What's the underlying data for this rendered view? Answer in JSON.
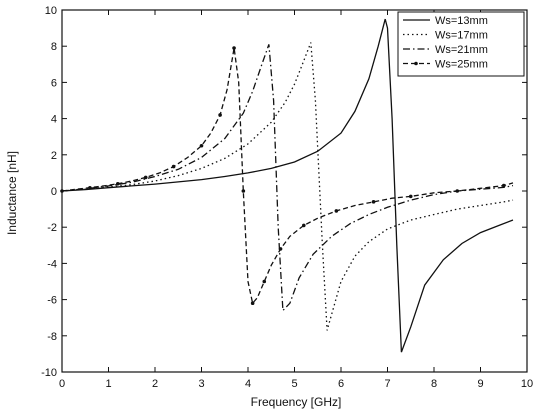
{
  "chart_data": {
    "type": "line",
    "xlabel": "Frequency  [GHz]",
    "ylabel": "Inductance  [nH]",
    "xlim": [
      0,
      10
    ],
    "ylim": [
      -10,
      10
    ],
    "xticks": [
      0,
      1,
      2,
      3,
      4,
      5,
      6,
      7,
      8,
      9,
      10
    ],
    "yticks": [
      -10,
      -8,
      -6,
      -4,
      -2,
      0,
      2,
      4,
      6,
      8,
      10
    ],
    "grid": false,
    "legend_position": "top-right",
    "series": [
      {
        "name": "Ws=13mm",
        "style": "solid",
        "x": [
          0,
          0.5,
          1.0,
          1.5,
          2.0,
          2.5,
          3.0,
          3.5,
          4.0,
          4.5,
          5.0,
          5.5,
          6.0,
          6.3,
          6.6,
          6.8,
          6.95,
          7.0,
          7.1,
          7.2,
          7.3,
          7.5,
          7.8,
          8.2,
          8.6,
          9.0,
          9.4,
          9.7
        ],
        "y": [
          0.0,
          0.08,
          0.18,
          0.28,
          0.38,
          0.5,
          0.63,
          0.8,
          1.0,
          1.25,
          1.6,
          2.2,
          3.2,
          4.4,
          6.2,
          8.0,
          9.5,
          9.0,
          4.0,
          -3.0,
          -8.9,
          -7.5,
          -5.2,
          -3.8,
          -2.9,
          -2.3,
          -1.9,
          -1.6
        ]
      },
      {
        "name": "Ws=17mm",
        "style": "dotted",
        "x": [
          0,
          0.5,
          1.0,
          1.5,
          2.0,
          2.5,
          3.0,
          3.5,
          4.0,
          4.5,
          4.8,
          5.0,
          5.2,
          5.35,
          5.45,
          5.6,
          5.7,
          5.8,
          6.0,
          6.3,
          6.6,
          7.0,
          7.5,
          8.0,
          8.5,
          9.0,
          9.5,
          9.7
        ],
        "y": [
          0.0,
          0.1,
          0.22,
          0.35,
          0.55,
          0.85,
          1.25,
          1.8,
          2.6,
          3.8,
          4.9,
          5.9,
          7.2,
          8.2,
          5.0,
          -3.0,
          -7.7,
          -6.8,
          -5.0,
          -3.6,
          -2.8,
          -2.1,
          -1.6,
          -1.3,
          -1.0,
          -0.8,
          -0.6,
          -0.5
        ]
      },
      {
        "name": "Ws=21mm",
        "style": "dashdot",
        "x": [
          0,
          0.5,
          1.0,
          1.5,
          2.0,
          2.5,
          3.0,
          3.5,
          3.9,
          4.1,
          4.3,
          4.45,
          4.55,
          4.65,
          4.75,
          4.9,
          5.1,
          5.4,
          5.8,
          6.2,
          6.6,
          7.0,
          7.5,
          8.0,
          8.5,
          9.0,
          9.5,
          9.7
        ],
        "y": [
          0.0,
          0.12,
          0.28,
          0.48,
          0.8,
          1.2,
          1.85,
          2.9,
          4.3,
          5.5,
          7.0,
          8.1,
          5.0,
          -2.0,
          -6.6,
          -6.2,
          -4.8,
          -3.5,
          -2.5,
          -1.8,
          -1.3,
          -0.9,
          -0.5,
          -0.2,
          0.0,
          0.1,
          0.2,
          0.3
        ]
      },
      {
        "name": "Ws=25mm",
        "style": "dash-star",
        "x": [
          0,
          0.3,
          0.6,
          0.9,
          1.2,
          1.5,
          1.8,
          2.1,
          2.4,
          2.7,
          3.0,
          3.2,
          3.4,
          3.55,
          3.7,
          3.8,
          3.9,
          4.0,
          4.1,
          4.2,
          4.35,
          4.5,
          4.7,
          4.9,
          5.2,
          5.5,
          5.9,
          6.3,
          6.7,
          7.1,
          7.5,
          8.0,
          8.5,
          9.0,
          9.5,
          9.7
        ],
        "y": [
          0.0,
          0.1,
          0.18,
          0.28,
          0.4,
          0.55,
          0.75,
          1.0,
          1.35,
          1.85,
          2.5,
          3.2,
          4.2,
          5.6,
          7.9,
          6.0,
          0.0,
          -5.0,
          -6.2,
          -5.9,
          -5.0,
          -4.1,
          -3.2,
          -2.5,
          -1.9,
          -1.5,
          -1.1,
          -0.8,
          -0.6,
          -0.4,
          -0.3,
          -0.1,
          0.0,
          0.15,
          0.3,
          0.45
        ]
      }
    ]
  }
}
